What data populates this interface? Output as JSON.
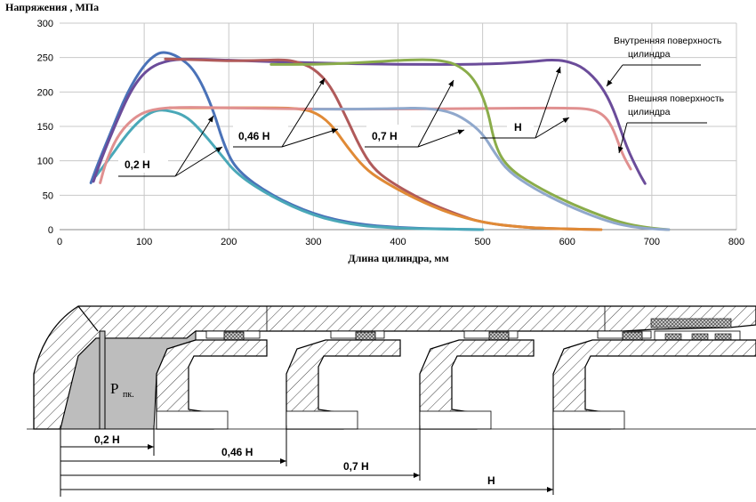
{
  "chart_data": {
    "type": "line",
    "ylabel": "Напряжения , МПа",
    "xlabel": "Длина цилиндра, мм",
    "xlim": [
      0,
      800
    ],
    "ylim": [
      0,
      300
    ],
    "x_ticks": [
      "0",
      "100",
      "200",
      "300",
      "400",
      "500",
      "600",
      "700",
      "800"
    ],
    "y_ticks": [
      "0",
      "50",
      "100",
      "150",
      "200",
      "250",
      "300"
    ],
    "grid": true,
    "series": [
      {
        "color": "#4a72b8",
        "points": [
          [
            37,
            68
          ],
          [
            45,
            95
          ],
          [
            60,
            140
          ],
          [
            80,
            200
          ],
          [
            100,
            240
          ],
          [
            115,
            256
          ],
          [
            125,
            258
          ],
          [
            140,
            252
          ],
          [
            160,
            232
          ],
          [
            180,
            180
          ],
          [
            195,
            120
          ],
          [
            210,
            85
          ],
          [
            250,
            50
          ],
          [
            300,
            22
          ],
          [
            350,
            8
          ],
          [
            400,
            3
          ],
          [
            450,
            1
          ],
          [
            500,
            0
          ]
        ]
      },
      {
        "color": "#4aa8b8",
        "points": [
          [
            43,
            78
          ],
          [
            60,
            105
          ],
          [
            80,
            140
          ],
          [
            100,
            165
          ],
          [
            115,
            174
          ],
          [
            130,
            173
          ],
          [
            150,
            165
          ],
          [
            170,
            140
          ],
          [
            190,
            110
          ],
          [
            210,
            80
          ],
          [
            250,
            48
          ],
          [
            300,
            20
          ],
          [
            350,
            6
          ],
          [
            400,
            2
          ],
          [
            450,
            1
          ],
          [
            500,
            0
          ]
        ]
      },
      {
        "color": "#6b4c9a",
        "points": [
          [
            40,
            70
          ],
          [
            50,
            105
          ],
          [
            65,
            150
          ],
          [
            85,
            205
          ],
          [
            105,
            235
          ],
          [
            130,
            247
          ],
          [
            160,
            248
          ],
          [
            200,
            246
          ],
          [
            300,
            242
          ],
          [
            400,
            240
          ],
          [
            500,
            240
          ],
          [
            560,
            244
          ],
          [
            580,
            247
          ],
          [
            600,
            245
          ],
          [
            620,
            235
          ],
          [
            640,
            210
          ],
          [
            655,
            175
          ],
          [
            670,
            120
          ],
          [
            685,
            82
          ],
          [
            692,
            67
          ]
        ]
      },
      {
        "color": "#b05a5a",
        "points": [
          [
            125,
            248
          ],
          [
            160,
            247
          ],
          [
            200,
            245
          ],
          [
            240,
            246
          ],
          [
            265,
            247
          ],
          [
            280,
            244
          ],
          [
            300,
            235
          ],
          [
            320,
            210
          ],
          [
            340,
            160
          ],
          [
            355,
            120
          ],
          [
            370,
            90
          ],
          [
            390,
            70
          ],
          [
            430,
            42
          ],
          [
            470,
            22
          ],
          [
            500,
            10
          ],
          [
            550,
            3
          ],
          [
            600,
            1
          ],
          [
            640,
            0
          ]
        ]
      },
      {
        "color": "#e08a36",
        "points": [
          [
            130,
            177
          ],
          [
            200,
            177
          ],
          [
            260,
            177
          ],
          [
            280,
            176
          ],
          [
            300,
            172
          ],
          [
            320,
            155
          ],
          [
            340,
            120
          ],
          [
            360,
            90
          ],
          [
            380,
            72
          ],
          [
            420,
            45
          ],
          [
            460,
            24
          ],
          [
            500,
            10
          ],
          [
            550,
            3
          ],
          [
            600,
            1
          ],
          [
            640,
            0
          ]
        ]
      },
      {
        "color": "#e09090",
        "points": [
          [
            48,
            68
          ],
          [
            55,
            100
          ],
          [
            70,
            140
          ],
          [
            90,
            165
          ],
          [
            110,
            175
          ],
          [
            140,
            178
          ],
          [
            200,
            177
          ],
          [
            300,
            175
          ],
          [
            400,
            175
          ],
          [
            500,
            176
          ],
          [
            600,
            177
          ],
          [
            630,
            175
          ],
          [
            645,
            165
          ],
          [
            655,
            145
          ],
          [
            665,
            110
          ],
          [
            675,
            88
          ]
        ]
      },
      {
        "color": "#8aac4a",
        "points": [
          [
            250,
            240
          ],
          [
            300,
            240
          ],
          [
            350,
            242
          ],
          [
            400,
            246
          ],
          [
            430,
            247
          ],
          [
            450,
            246
          ],
          [
            470,
            240
          ],
          [
            490,
            220
          ],
          [
            505,
            180
          ],
          [
            515,
            120
          ],
          [
            530,
            90
          ],
          [
            560,
            65
          ],
          [
            600,
            40
          ],
          [
            640,
            20
          ],
          [
            670,
            8
          ],
          [
            700,
            2
          ],
          [
            720,
            0
          ]
        ]
      },
      {
        "color": "#90a8cc",
        "points": [
          [
            300,
            175
          ],
          [
            350,
            175
          ],
          [
            400,
            176
          ],
          [
            430,
            177
          ],
          [
            460,
            172
          ],
          [
            480,
            160
          ],
          [
            500,
            140
          ],
          [
            515,
            110
          ],
          [
            530,
            85
          ],
          [
            560,
            60
          ],
          [
            600,
            35
          ],
          [
            640,
            15
          ],
          [
            670,
            5
          ],
          [
            700,
            1
          ],
          [
            720,
            0
          ]
        ]
      }
    ],
    "callouts": [
      "0,2 Н",
      "0,46 Н",
      "0,7 Н",
      "Н"
    ],
    "legend_notes": [
      {
        "line1": "Внутренняя поверхность",
        "line2": "цилиндра"
      },
      {
        "line1": "Внешняя поверхность",
        "line2": "цилиндра"
      }
    ]
  },
  "drawing": {
    "pressure_label_main": "Р",
    "pressure_label_sub": "пк.",
    "dimensions": [
      "0,2 Н",
      "0,46 Н",
      "0,7 Н",
      "Н"
    ]
  }
}
